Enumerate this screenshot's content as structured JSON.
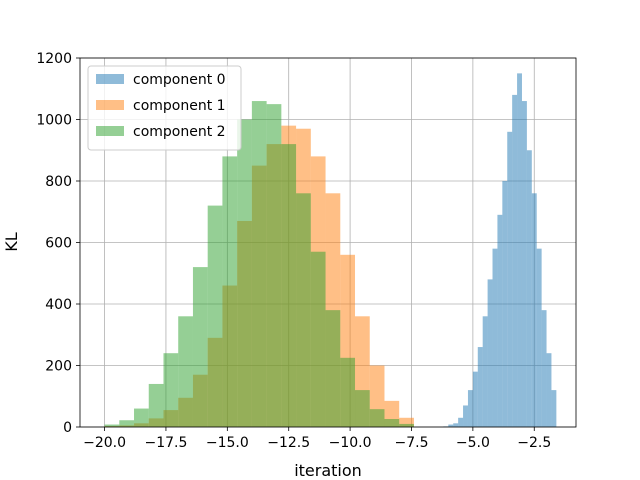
{
  "chart_data": {
    "type": "histogram",
    "xlabel": "iteration",
    "ylabel": "KL",
    "xlim": [
      -21.0,
      -0.8
    ],
    "ylim": [
      0,
      1200
    ],
    "xticks": [
      -20.0,
      -17.5,
      -15.0,
      -12.5,
      -10.0,
      -7.5,
      -5.0,
      -2.5
    ],
    "xtick_labels": [
      "−20.0",
      "−17.5",
      "−15.0",
      "−12.5",
      "−10.0",
      "−7.5",
      "−5.0",
      "−2.5"
    ],
    "yticks": [
      0,
      200,
      400,
      600,
      800,
      1000,
      1200
    ],
    "ytick_labels": [
      "0",
      "200",
      "400",
      "600",
      "800",
      "1000",
      "1200"
    ],
    "grid": true,
    "legend_position": "top-left",
    "series": [
      {
        "name": "component 0",
        "color": "#1f77b4",
        "alpha": 0.5,
        "bin_edges": [
          -6.2,
          -6.0,
          -5.8,
          -5.6,
          -5.4,
          -5.2,
          -5.0,
          -4.8,
          -4.6,
          -4.4,
          -4.2,
          -4.0,
          -3.8,
          -3.6,
          -3.4,
          -3.2,
          -3.0,
          -2.8,
          -2.6,
          -2.4,
          -2.2,
          -2.0,
          -1.8,
          -1.6
        ],
        "counts": [
          2,
          8,
          12,
          30,
          70,
          120,
          180,
          260,
          360,
          480,
          580,
          690,
          800,
          960,
          1080,
          1150,
          1060,
          900,
          760,
          580,
          380,
          240,
          120
        ]
      },
      {
        "name": "component 1",
        "color": "#ff7f0e",
        "alpha": 0.5,
        "bin_edges": [
          -20.0,
          -19.4,
          -18.8,
          -18.2,
          -17.6,
          -17.0,
          -16.4,
          -15.8,
          -15.2,
          -14.6,
          -14.0,
          -13.4,
          -12.8,
          -12.2,
          -11.6,
          -11.0,
          -10.4,
          -9.8,
          -9.2,
          -8.6,
          -8.0,
          -7.4
        ],
        "counts": [
          3,
          5,
          12,
          28,
          55,
          95,
          170,
          290,
          460,
          670,
          850,
          920,
          980,
          970,
          880,
          760,
          560,
          360,
          200,
          85,
          30
        ]
      },
      {
        "name": "component 2",
        "color": "#2ca02c",
        "alpha": 0.5,
        "bin_edges": [
          -20.0,
          -19.4,
          -18.8,
          -18.2,
          -17.6,
          -17.0,
          -16.4,
          -15.8,
          -15.2,
          -14.6,
          -14.0,
          -13.4,
          -12.8,
          -12.2,
          -11.6,
          -11.0,
          -10.4,
          -9.8,
          -9.2,
          -8.6,
          -8.0,
          -7.4
        ],
        "counts": [
          8,
          22,
          60,
          140,
          240,
          360,
          520,
          720,
          880,
          1000,
          1060,
          1050,
          920,
          760,
          570,
          380,
          225,
          120,
          58,
          26,
          10
        ]
      }
    ]
  }
}
